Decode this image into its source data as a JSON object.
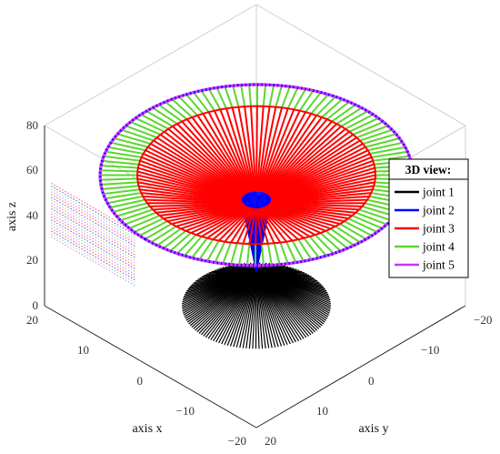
{
  "chart_data": {
    "type": "line3d",
    "title": "",
    "xlabel": "axis x",
    "ylabel": "axis y",
    "zlabel": "axis z",
    "xlim": [
      -20,
      20
    ],
    "ylim": [
      -20,
      20
    ],
    "zlim": [
      0,
      80
    ],
    "x_ticks": [
      "20",
      "10",
      "0",
      "−10",
      "−20"
    ],
    "y_ticks": [
      "−20",
      "−10",
      "0",
      "10",
      "20"
    ],
    "z_ticks": [
      "0",
      "20",
      "40",
      "60",
      "80"
    ],
    "grid": true,
    "legend": {
      "title": "3D view:",
      "placement": "right",
      "entries": [
        {
          "name": "joint 1",
          "color": "#000000"
        },
        {
          "name": "joint 2",
          "color": "#0000ff"
        },
        {
          "name": "joint 3",
          "color": "#ff0000"
        },
        {
          "name": "joint 4",
          "color": "#5cd62e"
        },
        {
          "name": "joint 5",
          "color": "#cc33ff"
        }
      ]
    },
    "series": [
      {
        "name": "joint 1",
        "shape": "cone",
        "apex_z": 15,
        "base_radius": 10,
        "base_z": 0
      },
      {
        "name": "joint 2",
        "shape": "cone",
        "apex_z": 15,
        "top_radius": 2,
        "top_z": 47
      },
      {
        "name": "joint 3",
        "shape": "disk",
        "radius": 16,
        "z_outer": 58,
        "z_inner": 47
      },
      {
        "name": "joint 4",
        "shape": "ring",
        "inner_radius": 16,
        "outer_radius": 21,
        "z": 58
      },
      {
        "name": "joint 5",
        "shape": "ring",
        "radius": 21,
        "z": 58
      }
    ]
  }
}
